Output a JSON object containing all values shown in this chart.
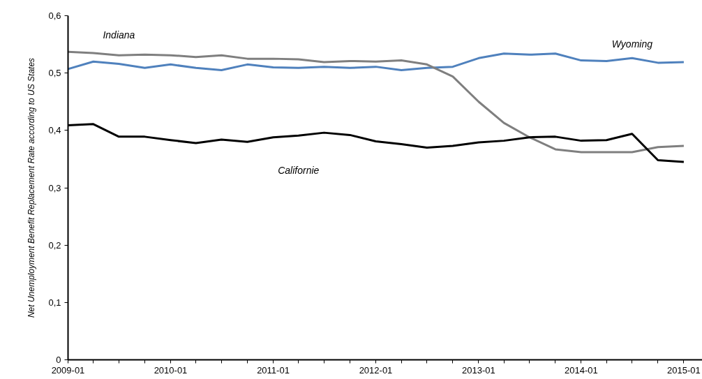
{
  "chart_data": {
    "type": "line",
    "ylabel": "Net Unemployment Benefit Replacement Rate according to US States",
    "x": [
      "2009-01",
      "2009-04",
      "2009-07",
      "2009-10",
      "2010-01",
      "2010-04",
      "2010-07",
      "2010-10",
      "2011-01",
      "2011-04",
      "2011-07",
      "2011-10",
      "2012-01",
      "2012-04",
      "2012-07",
      "2012-10",
      "2013-01",
      "2013-04",
      "2013-07",
      "2013-10",
      "2014-01",
      "2014-04",
      "2014-07",
      "2014-10",
      "2015-01"
    ],
    "series": [
      {
        "name": "Wyoming",
        "color": "#4f81bd",
        "values": [
          0.507,
          0.52,
          0.516,
          0.509,
          0.515,
          0.509,
          0.505,
          0.515,
          0.51,
          0.509,
          0.511,
          0.509,
          0.511,
          0.505,
          0.509,
          0.511,
          0.526,
          0.534,
          0.532,
          0.534,
          0.522,
          0.521,
          0.526,
          0.518,
          0.519
        ]
      },
      {
        "name": "Indiana",
        "color": "#7f7f7f",
        "values": [
          0.537,
          0.535,
          0.531,
          0.532,
          0.531,
          0.528,
          0.531,
          0.525,
          0.525,
          0.524,
          0.519,
          0.521,
          0.52,
          0.522,
          0.515,
          0.494,
          0.45,
          0.413,
          0.388,
          0.367,
          0.362,
          0.362,
          0.362,
          0.371,
          0.373
        ]
      },
      {
        "name": "Californie",
        "color": "#000000",
        "values": [
          0.409,
          0.411,
          0.389,
          0.389,
          0.383,
          0.378,
          0.384,
          0.38,
          0.388,
          0.391,
          0.396,
          0.392,
          0.381,
          0.376,
          0.37,
          0.373,
          0.379,
          0.382,
          0.388,
          0.389,
          0.382,
          0.383,
          0.394,
          0.348,
          0.345
        ]
      }
    ],
    "xlim": [
      "2009-01",
      "2015-03-08"
    ],
    "xticks": [
      {
        "value": "2009-01",
        "label": "2009-01"
      },
      {
        "value": "2009-04",
        "label": null
      },
      {
        "value": "2009-07",
        "label": null
      },
      {
        "value": "2009-10",
        "label": null
      },
      {
        "value": "2010-01",
        "label": "2010-01"
      },
      {
        "value": "2010-04",
        "label": null
      },
      {
        "value": "2010-07",
        "label": null
      },
      {
        "value": "2010-10",
        "label": null
      },
      {
        "value": "2011-01",
        "label": "2011-01"
      },
      {
        "value": "2011-04",
        "label": null
      },
      {
        "value": "2011-07",
        "label": null
      },
      {
        "value": "2011-10",
        "label": null
      },
      {
        "value": "2012-01",
        "label": "2012-01"
      },
      {
        "value": "2012-04",
        "label": null
      },
      {
        "value": "2012-07",
        "label": null
      },
      {
        "value": "2012-10",
        "label": null
      },
      {
        "value": "2013-01",
        "label": "2013-01"
      },
      {
        "value": "2013-04",
        "label": null
      },
      {
        "value": "2013-07",
        "label": null
      },
      {
        "value": "2013-10",
        "label": null
      },
      {
        "value": "2014-01",
        "label": "2014-01"
      },
      {
        "value": "2014-04",
        "label": null
      },
      {
        "value": "2014-07",
        "label": null
      },
      {
        "value": "2014-10",
        "label": null
      },
      {
        "value": "2015-01",
        "label": "2015-01"
      }
    ],
    "ylim": [
      0,
      0.6
    ],
    "yticks": [
      {
        "value": 0,
        "label": "0"
      },
      {
        "value": 0.1,
        "label": "0,1"
      },
      {
        "value": 0.2,
        "label": "0,2"
      },
      {
        "value": 0.3,
        "label": "0,3"
      },
      {
        "value": 0.4,
        "label": "0,4"
      },
      {
        "value": 0.5,
        "label": "0,5"
      },
      {
        "value": 0.6,
        "label": "0,6"
      }
    ],
    "grid": false
  }
}
